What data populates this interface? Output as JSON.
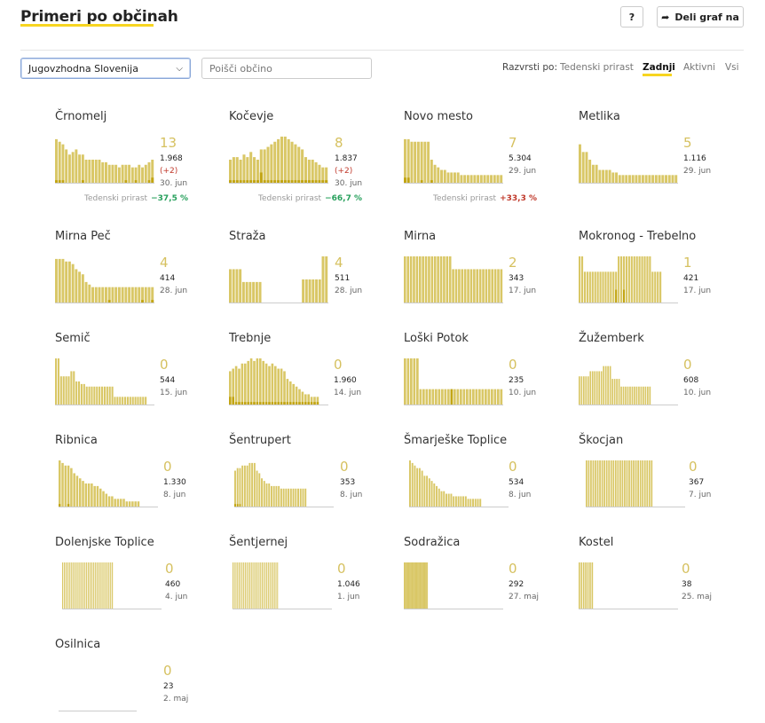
{
  "header": {
    "title": "Primeri po občinah",
    "help_label": "?",
    "share_label": "Deli graf na"
  },
  "filters": {
    "region_value": "Jugovzhodna Slovenija",
    "search_placeholder": "Poišči občino"
  },
  "sort": {
    "label": "Razvrsti po:",
    "options": [
      "Tedenski prirast",
      "Zadnji",
      "Aktivni",
      "Vsi"
    ],
    "active": "Zadnji"
  },
  "colors": {
    "bar": "#d9c766",
    "active": "#c2a513",
    "accent": "#f7d520"
  },
  "chart_data": [
    {
      "type": "bar",
      "title": "Črnomelj",
      "big": "13",
      "total": "1.968",
      "delta": "(+2)",
      "date": "30. jun",
      "weekly_label": "Tedenski prirast",
      "weekly": "−37,5 %",
      "weekly_sign": "neg",
      "values": [
        17,
        16,
        15,
        13,
        11,
        12,
        13,
        11,
        11,
        9,
        9,
        9,
        9,
        9,
        8,
        8,
        7,
        7,
        7,
        6,
        7,
        7,
        7,
        6,
        6,
        7,
        6,
        7,
        8,
        9
      ],
      "active": [
        1,
        1,
        1,
        0,
        0,
        0,
        0,
        0,
        1,
        0,
        0,
        0,
        0,
        0,
        0,
        0,
        0,
        0,
        0,
        0,
        0,
        1,
        0,
        0,
        1,
        0,
        0,
        0,
        1,
        2
      ]
    },
    {
      "type": "bar",
      "title": "Kočevje",
      "big": "8",
      "total": "1.837",
      "delta": "(+2)",
      "date": "30. jun",
      "weekly_label": "Tedenski prirast",
      "weekly": "−66,7 %",
      "weekly_sign": "neg",
      "values": [
        9,
        10,
        10,
        9,
        11,
        10,
        12,
        10,
        9,
        13,
        13,
        14,
        15,
        16,
        17,
        18,
        18,
        17,
        16,
        15,
        14,
        13,
        10,
        9,
        9,
        8,
        7,
        6,
        6
      ],
      "active": [
        1,
        1,
        1,
        1,
        1,
        1,
        1,
        1,
        1,
        4,
        1,
        1,
        1,
        1,
        1,
        1,
        1,
        1,
        1,
        1,
        1,
        1,
        1,
        1,
        1,
        1,
        1,
        1,
        1
      ]
    },
    {
      "type": "bar",
      "title": "Novo mesto",
      "big": "7",
      "total": "5.304",
      "date": "29. jun",
      "weekly_label": "Tedenski prirast",
      "weekly": "+33,3 %",
      "weekly_sign": "pos",
      "values": [
        17,
        17,
        16,
        16,
        16,
        16,
        16,
        16,
        9,
        7,
        6,
        5,
        5,
        4,
        4,
        4,
        4,
        3,
        3,
        3,
        3,
        3,
        3,
        3,
        3,
        3,
        3,
        3,
        3,
        3
      ],
      "active": [
        2,
        2,
        0,
        0,
        0,
        1,
        0,
        0,
        1,
        0,
        0,
        0,
        0,
        0,
        0,
        0,
        0,
        0,
        0,
        0,
        0,
        0,
        0,
        0,
        0,
        0,
        0,
        0,
        0,
        0
      ]
    },
    {
      "type": "bar",
      "title": "Metlika",
      "big": "5",
      "total": "1.116",
      "date": "29. jun",
      "values": [
        15,
        12,
        12,
        9,
        7,
        7,
        5,
        5,
        5,
        5,
        4,
        4,
        3,
        3,
        3,
        3,
        3,
        3,
        3,
        3,
        3,
        3,
        3,
        3,
        3,
        3,
        3,
        3,
        3,
        3
      ],
      "active": [
        0,
        0,
        0,
        0,
        0,
        0,
        0,
        0,
        0,
        0,
        0,
        0,
        0,
        0,
        0,
        0,
        0,
        0,
        0,
        0,
        0,
        0,
        0,
        0,
        0,
        0,
        0,
        0,
        0,
        0
      ]
    },
    {
      "type": "bar",
      "title": "Mirna Peč",
      "big": "4",
      "total": "414",
      "date": "28. jun",
      "values": [
        17,
        17,
        17,
        16,
        16,
        15,
        13,
        12,
        11,
        8,
        7,
        6,
        6,
        6,
        6,
        6,
        6,
        6,
        6,
        6,
        6,
        6,
        6,
        6,
        6,
        6,
        6,
        6,
        6,
        6
      ],
      "active": [
        0,
        0,
        0,
        0,
        0,
        0,
        0,
        0,
        0,
        0,
        0,
        0,
        0,
        0,
        0,
        0,
        1,
        0,
        0,
        0,
        0,
        0,
        0,
        0,
        0,
        0,
        1,
        0,
        0,
        1
      ]
    },
    {
      "type": "bar",
      "title": "Straža",
      "big": "4",
      "total": "511",
      "date": "28. jun",
      "values": [
        13,
        13,
        13,
        13,
        8,
        8,
        8,
        8,
        8,
        8,
        0,
        0,
        0,
        0,
        0,
        0,
        0,
        0,
        0,
        0,
        0,
        0,
        9,
        9,
        9,
        9,
        9,
        9,
        18,
        18
      ],
      "active": [
        0,
        0,
        0,
        0,
        0,
        0,
        0,
        0,
        0,
        0,
        0,
        0,
        0,
        0,
        0,
        0,
        0,
        0,
        0,
        0,
        0,
        0,
        0,
        0,
        0,
        0,
        0,
        0,
        0,
        0
      ]
    },
    {
      "type": "bar",
      "title": "Mirna",
      "big": "2",
      "total": "343",
      "date": "17. jun",
      "values": [
        18,
        18,
        18,
        18,
        18,
        18,
        18,
        18,
        18,
        18,
        18,
        18,
        18,
        18,
        18,
        18,
        13,
        13,
        13,
        13,
        13,
        13,
        13,
        13,
        13,
        13,
        13,
        13,
        13,
        13,
        13,
        13,
        13
      ],
      "active": [
        0,
        0,
        0,
        0,
        0,
        0,
        0,
        0,
        0,
        0,
        0,
        0,
        0,
        0,
        0,
        0,
        0,
        0,
        0,
        0,
        0,
        0,
        0,
        0,
        0,
        0,
        0,
        0,
        0,
        0,
        0,
        0,
        0
      ]
    },
    {
      "type": "bar",
      "title": "Mokronog - Trebelno",
      "big": "1",
      "total": "421",
      "date": "17. jun",
      "values": [
        18,
        18,
        12,
        12,
        12,
        12,
        12,
        12,
        12,
        12,
        12,
        12,
        12,
        12,
        12,
        18,
        18,
        18,
        18,
        18,
        18,
        18,
        18,
        18,
        18,
        18,
        18,
        18,
        12,
        12,
        12,
        12
      ],
      "active": [
        0,
        0,
        0,
        0,
        0,
        0,
        0,
        0,
        0,
        0,
        0,
        0,
        0,
        0,
        5,
        0,
        0,
        5,
        0,
        0,
        0,
        0,
        0,
        0,
        0,
        0,
        0,
        0,
        0,
        0,
        0,
        0
      ]
    },
    {
      "type": "bar",
      "title": "Semič",
      "big": "0",
      "total": "544",
      "date": "15. jun",
      "values": [
        18,
        18,
        11,
        11,
        11,
        11,
        13,
        13,
        9,
        9,
        8,
        8,
        7,
        7,
        7,
        7,
        7,
        7,
        7,
        7,
        7,
        7,
        7,
        3,
        3,
        3,
        3,
        3,
        3,
        3,
        3,
        3,
        3,
        3,
        3,
        3
      ],
      "active": [
        0,
        0,
        0,
        0,
        0,
        0,
        0,
        0,
        0,
        0,
        0,
        0,
        0,
        0,
        0,
        0,
        0,
        0,
        0,
        0,
        0,
        0,
        0,
        0,
        0,
        0,
        0,
        0,
        0,
        0,
        0,
        0,
        0,
        0,
        0,
        0
      ]
    },
    {
      "type": "bar",
      "title": "Trebnje",
      "big": "0",
      "total": "1.960",
      "date": "14. jun",
      "values": [
        13,
        14,
        15,
        14,
        16,
        16,
        17,
        18,
        17,
        18,
        18,
        17,
        16,
        15,
        16,
        15,
        14,
        14,
        13,
        10,
        9,
        8,
        7,
        6,
        5,
        4,
        4,
        3,
        3,
        3
      ],
      "active": [
        3,
        3,
        1,
        1,
        1,
        1,
        1,
        1,
        1,
        1,
        1,
        1,
        1,
        1,
        1,
        1,
        1,
        1,
        1,
        1,
        1,
        1,
        1,
        1,
        1,
        1,
        1,
        1,
        1,
        1
      ]
    },
    {
      "type": "bar",
      "title": "Loški Potok",
      "big": "0",
      "total": "235",
      "date": "10. jun",
      "values": [
        18,
        18,
        18,
        18,
        18,
        6,
        6,
        6,
        6,
        6,
        6,
        6,
        6,
        6,
        6,
        6,
        6,
        6,
        6,
        6,
        6,
        6,
        6,
        6,
        6,
        6,
        6,
        6,
        6,
        6,
        6,
        6
      ],
      "active": [
        0,
        0,
        0,
        0,
        0,
        0,
        0,
        0,
        0,
        0,
        0,
        0,
        0,
        0,
        0,
        6,
        0,
        0,
        0,
        0,
        0,
        0,
        0,
        0,
        0,
        0,
        0,
        0,
        0,
        0,
        0,
        0
      ]
    },
    {
      "type": "bar",
      "title": "Žužemberk",
      "big": "0",
      "total": "608",
      "date": "10. jun",
      "values": [
        11,
        11,
        11,
        11,
        11,
        13,
        13,
        13,
        13,
        13,
        13,
        15,
        15,
        15,
        15,
        10,
        10,
        10,
        10,
        7,
        7,
        7,
        7,
        7,
        7,
        7,
        7,
        7,
        7,
        7,
        7,
        7,
        7
      ],
      "active": [
        0,
        0,
        0,
        0,
        0,
        0,
        0,
        0,
        0,
        0,
        0,
        0,
        0,
        0,
        0,
        0,
        0,
        0,
        0,
        0,
        0,
        0,
        0,
        0,
        0,
        0,
        0,
        0,
        0,
        0,
        0,
        0,
        0
      ]
    },
    {
      "type": "bar",
      "title": "Ribnica",
      "big": "0",
      "total": "1.330",
      "date": "8. jun",
      "values": [
        18,
        17,
        16,
        16,
        15,
        13,
        12,
        11,
        10,
        9,
        9,
        9,
        8,
        8,
        7,
        6,
        5,
        4,
        4,
        3,
        3,
        3,
        3,
        2,
        2,
        2,
        2,
        2
      ],
      "active": [
        1,
        0,
        0,
        1,
        0,
        0,
        0,
        0,
        0,
        0,
        0,
        0,
        0,
        0,
        0,
        0,
        0,
        0,
        0,
        0,
        0,
        0,
        0,
        0,
        0,
        0,
        0,
        0
      ]
    },
    {
      "type": "bar",
      "title": "Šentrupert",
      "big": "0",
      "total": "353",
      "date": "8. jun",
      "values": [
        14,
        15,
        15,
        16,
        16,
        16,
        17,
        17,
        17,
        14,
        13,
        11,
        10,
        9,
        9,
        8,
        8,
        8,
        8,
        7,
        7,
        7,
        7,
        7,
        7,
        7,
        7,
        7,
        7,
        7
      ],
      "active": [
        1,
        1,
        1,
        0,
        0,
        0,
        0,
        0,
        0,
        0,
        0,
        0,
        0,
        0,
        0,
        0,
        0,
        0,
        0,
        0,
        0,
        0,
        0,
        0,
        0,
        0,
        0,
        0,
        0,
        0
      ]
    },
    {
      "type": "bar",
      "title": "Šmarješke Toplice",
      "big": "0",
      "total": "534",
      "date": "8. jun",
      "values": [
        18,
        17,
        16,
        15,
        15,
        14,
        12,
        12,
        11,
        10,
        9,
        8,
        7,
        6,
        6,
        5,
        5,
        5,
        4,
        4,
        4,
        4,
        4,
        4,
        3,
        3,
        3,
        3,
        3,
        3
      ],
      "active": [
        0,
        0,
        0,
        0,
        0,
        0,
        0,
        0,
        0,
        0,
        0,
        0,
        0,
        0,
        0,
        0,
        0,
        0,
        0,
        0,
        0,
        0,
        0,
        0,
        0,
        0,
        0,
        0,
        0,
        0
      ]
    },
    {
      "type": "bar",
      "title": "Škocjan",
      "big": "0",
      "total": "367",
      "date": "7. jun",
      "values": [
        18,
        18,
        18,
        18,
        18,
        18,
        18,
        18,
        18,
        18,
        18,
        18,
        18,
        18,
        18,
        18,
        18,
        18,
        18,
        18,
        18,
        18,
        18,
        18,
        18,
        18,
        18,
        18,
        18,
        18
      ],
      "active": [
        0,
        0,
        0,
        0,
        0,
        0,
        0,
        0,
        0,
        0,
        0,
        0,
        0,
        0,
        0,
        0,
        0,
        0,
        0,
        0,
        0,
        0,
        0,
        0,
        0,
        0,
        0,
        0,
        0,
        0
      ]
    },
    {
      "type": "bar",
      "title": "Dolenjske Toplice",
      "big": "0",
      "total": "460",
      "date": "4. jun",
      "values": [
        18,
        18,
        18,
        18,
        18,
        18,
        18,
        18,
        18,
        18,
        18,
        18,
        18,
        18,
        18,
        18,
        18,
        18,
        18,
        18,
        18,
        18,
        18,
        18,
        18,
        18,
        18,
        18,
        18,
        18
      ],
      "active": [
        0,
        0,
        0,
        0,
        0,
        0,
        0,
        0,
        0,
        0,
        0,
        0,
        0,
        0,
        0,
        0,
        0,
        0,
        0,
        0,
        0,
        0,
        0,
        0,
        0,
        0,
        0,
        0,
        0,
        0
      ]
    },
    {
      "type": "bar",
      "title": "Šentjernej",
      "big": "0",
      "total": "1.046",
      "date": "1. jun",
      "values": [
        18,
        18,
        18,
        18,
        18,
        18,
        18,
        18,
        18,
        18,
        18,
        18,
        18,
        18,
        18,
        18,
        18,
        18,
        18,
        18,
        18,
        18,
        18,
        18,
        18,
        18,
        18,
        18,
        18,
        18
      ],
      "active": [
        0,
        0,
        0,
        0,
        0,
        0,
        0,
        0,
        0,
        0,
        0,
        0,
        0,
        0,
        0,
        0,
        0,
        0,
        0,
        0,
        0,
        0,
        0,
        0,
        0,
        0,
        0,
        0,
        0,
        0
      ]
    },
    {
      "type": "bar",
      "title": "Sodražica",
      "big": "0",
      "total": "292",
      "date": "27. maj",
      "values": [
        18,
        18,
        18,
        18,
        18,
        18,
        18,
        18,
        18,
        18,
        18,
        18,
        18,
        18,
        18,
        18,
        18,
        18,
        18,
        18,
        18,
        18,
        18,
        18,
        18,
        18,
        18,
        18,
        18,
        18
      ],
      "active": [
        0,
        0,
        0,
        0,
        0,
        0,
        0,
        0,
        0,
        0,
        0,
        0,
        0,
        0,
        0,
        0,
        0,
        0,
        0,
        0,
        0,
        0,
        0,
        0,
        0,
        0,
        0,
        0,
        0,
        0
      ]
    },
    {
      "type": "bar",
      "title": "Kostel",
      "big": "0",
      "total": "38",
      "date": "25. maj",
      "values": [
        18,
        18,
        18,
        18,
        18,
        18,
        18
      ],
      "active": [
        0,
        0,
        0,
        0,
        0,
        0,
        0
      ]
    },
    {
      "type": "bar",
      "title": "Osilnica",
      "big": "0",
      "total": "23",
      "date": "2. maj",
      "values": [],
      "active": []
    }
  ]
}
